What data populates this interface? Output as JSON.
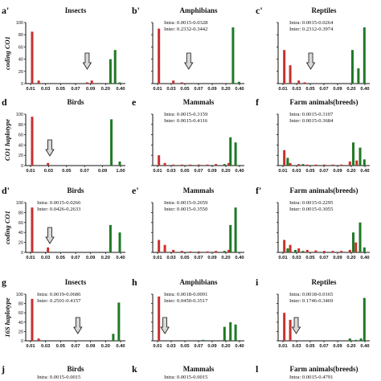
{
  "row_labels": [
    "coding CO1",
    "CO1 haplotype",
    "coding CO1",
    "16S haplotype"
  ],
  "colors": {
    "intra": "#c8302e",
    "inter": "#1e7a26",
    "arrow": "#d9d9d9",
    "axis": "#111111"
  },
  "chart_data": [
    {
      "type": "bar",
      "panel": "a'",
      "title": "Insects",
      "annotations": [],
      "categories": [
        "0.01",
        "0.03",
        "0.05",
        "0.07",
        "0.09",
        "0.20",
        "0.40"
      ],
      "ylim": [
        0,
        100
      ],
      "yticks": [
        0,
        20,
        40,
        60,
        80,
        100
      ],
      "arrow_at": 0.62,
      "series": [
        {
          "values": [
            [
              0.03,
              85
            ],
            [
              0.1,
              5
            ],
            [
              0.62,
              2
            ],
            [
              0.67,
              5
            ]
          ]
        },
        {
          "values": [
            [
              0.87,
              40
            ],
            [
              0.92,
              55
            ],
            [
              0.97,
              2
            ]
          ]
        }
      ]
    },
    {
      "type": "bar",
      "panel": "b'",
      "title": "Amphibians",
      "annotations": [
        "Intra: 0.0015-0.0328",
        "Inter: 0.2332-0.3442"
      ],
      "categories": [
        "0.01",
        "0.03",
        "0.05",
        "0.07",
        "0.09",
        "0.20",
        "0.40"
      ],
      "ylim": [
        0,
        100
      ],
      "yticks": [
        0,
        20,
        40,
        60,
        80,
        100
      ],
      "arrow_at": 0.38,
      "series": [
        {
          "values": [
            [
              0.03,
              90
            ],
            [
              0.2,
              5
            ],
            [
              0.3,
              2
            ]
          ]
        },
        {
          "values": [
            [
              0.9,
              92
            ],
            [
              0.97,
              3
            ]
          ]
        }
      ]
    },
    {
      "type": "bar",
      "panel": "c'",
      "title": "Reptiles",
      "annotations": [
        "Intra: 0.0015-0.0264",
        "Inter: 0.2312-0.3974"
      ],
      "categories": [
        "0.01",
        "0.03",
        "0.05",
        "0.07",
        "0.09",
        "0.20",
        "0.40"
      ],
      "ylim": [
        0,
        100
      ],
      "yticks": [
        0,
        20,
        40,
        60,
        80,
        100
      ],
      "arrow_at": 0.34,
      "series": [
        {
          "values": [
            [
              0.03,
              55
            ],
            [
              0.1,
              30
            ],
            [
              0.2,
              5
            ],
            [
              0.27,
              2
            ]
          ]
        },
        {
          "values": [
            [
              0.83,
              55
            ],
            [
              0.9,
              25
            ],
            [
              0.97,
              92
            ]
          ]
        }
      ]
    },
    {
      "type": "bar",
      "panel": "d",
      "title": "Birds",
      "annotations": [],
      "categories": [
        "0.01",
        "0.03",
        "0.05",
        "0.07",
        "0.09",
        "1.00"
      ],
      "ylim": [
        0,
        100
      ],
      "yticks": [
        0,
        20,
        40,
        60,
        80,
        100
      ],
      "arrow_at": 0.22,
      "series": [
        {
          "values": [
            [
              0.03,
              95
            ],
            [
              0.2,
              5
            ]
          ]
        },
        {
          "values": [
            [
              0.88,
              90
            ],
            [
              0.97,
              8
            ]
          ]
        }
      ]
    },
    {
      "type": "bar",
      "panel": "e",
      "title": "Mammals",
      "annotations": [
        "Intra: 0.0015-0.3159",
        "Inter: 0.0015-0.4116"
      ],
      "categories": [
        "0.01",
        "0.03",
        "0.05",
        "0.07",
        "0.09",
        "0.20",
        "0.40"
      ],
      "ylim": [
        0,
        100
      ],
      "yticks": [
        0,
        20,
        40,
        60,
        80,
        100
      ],
      "arrow_at": null,
      "series": [
        {
          "values": [
            [
              0.03,
              20
            ],
            [
              0.1,
              5
            ],
            [
              0.2,
              2
            ],
            [
              0.3,
              2
            ],
            [
              0.4,
              2
            ],
            [
              0.5,
              2
            ],
            [
              0.6,
              2
            ],
            [
              0.7,
              3
            ],
            [
              0.85,
              5
            ]
          ]
        },
        {
          "values": [
            [
              0.8,
              3
            ],
            [
              0.87,
              55
            ],
            [
              0.93,
              45
            ]
          ]
        }
      ]
    },
    {
      "type": "bar",
      "panel": "f",
      "title": "Farm animals(breeds)",
      "annotations": [
        "Intra: 0.0015-0.3107",
        "Inter: 0.0015-0.3684"
      ],
      "categories": [
        "0.01",
        "0.03",
        "0.05",
        "0.07",
        "0.09",
        "0.20",
        "0.40"
      ],
      "ylim": [
        0,
        100
      ],
      "yticks": [
        0,
        20,
        40,
        60,
        80,
        100
      ],
      "arrow_at": null,
      "series": [
        {
          "values": [
            [
              0.03,
              30
            ],
            [
              0.1,
              5
            ],
            [
              0.2,
              3
            ],
            [
              0.3,
              2
            ],
            [
              0.4,
              2
            ],
            [
              0.5,
              2
            ],
            [
              0.6,
              2
            ],
            [
              0.7,
              2
            ],
            [
              0.8,
              8
            ],
            [
              0.88,
              10
            ]
          ]
        },
        {
          "values": [
            [
              0.07,
              15
            ],
            [
              0.25,
              3
            ],
            [
              0.84,
              45
            ],
            [
              0.92,
              35
            ],
            [
              0.97,
              12
            ]
          ]
        }
      ]
    },
    {
      "type": "bar",
      "panel": "d'",
      "title": "Birds",
      "annotations": [
        "Intra: 0.0015-0.0266",
        "Inter: 0.0426-0.2633"
      ],
      "categories": [
        "0.01",
        "0.03",
        "0.05",
        "0.07",
        "0.09",
        "0.20",
        "0.40"
      ],
      "ylim": [
        0,
        100
      ],
      "yticks": [
        0,
        20,
        40,
        60,
        80,
        100
      ],
      "arrow_at": 0.22,
      "series": [
        {
          "values": [
            [
              0.03,
              90
            ],
            [
              0.2,
              10
            ]
          ]
        },
        {
          "values": [
            [
              0.87,
              55
            ],
            [
              0.97,
              40
            ]
          ]
        }
      ]
    },
    {
      "type": "bar",
      "panel": "e'",
      "title": "Mammals",
      "annotations": [
        "Intra: 0.0015-0.2659",
        "Inter: 0.0015-0.3550"
      ],
      "categories": [
        "0.01",
        "0.03",
        "0.05",
        "0.07",
        "0.09",
        "0.20",
        "0.40"
      ],
      "ylim": [
        0,
        100
      ],
      "yticks": [
        0,
        20,
        40,
        60,
        80,
        100
      ],
      "arrow_at": null,
      "series": [
        {
          "values": [
            [
              0.03,
              25
            ],
            [
              0.1,
              15
            ],
            [
              0.2,
              5
            ],
            [
              0.3,
              3
            ],
            [
              0.4,
              2
            ],
            [
              0.5,
              2
            ],
            [
              0.6,
              2
            ],
            [
              0.7,
              3
            ],
            [
              0.85,
              5
            ]
          ]
        },
        {
          "values": [
            [
              0.8,
              3
            ],
            [
              0.87,
              55
            ],
            [
              0.93,
              90
            ]
          ]
        }
      ]
    },
    {
      "type": "bar",
      "panel": "f'",
      "title": "Farm animals(breeds)",
      "annotations": [
        "Intra: 0.0015-0.2295",
        "Inter: 0.0015-0.3055"
      ],
      "categories": [
        "0.01",
        "0.03",
        "0.05",
        "0.07",
        "0.09",
        "0.20",
        "0.40"
      ],
      "ylim": [
        0,
        100
      ],
      "yticks": [
        0,
        20,
        40,
        60,
        80,
        100
      ],
      "arrow_at": null,
      "series": [
        {
          "values": [
            [
              0.03,
              25
            ],
            [
              0.1,
              15
            ],
            [
              0.2,
              8
            ],
            [
              0.3,
              5
            ],
            [
              0.4,
              4
            ],
            [
              0.5,
              3
            ],
            [
              0.6,
              3
            ],
            [
              0.7,
              3
            ],
            [
              0.8,
              5
            ],
            [
              0.87,
              20
            ]
          ]
        },
        {
          "values": [
            [
              0.07,
              8
            ],
            [
              0.16,
              5
            ],
            [
              0.25,
              3
            ],
            [
              0.84,
              40
            ],
            [
              0.92,
              60
            ],
            [
              0.97,
              10
            ]
          ]
        }
      ]
    },
    {
      "type": "bar",
      "panel": "g",
      "title": "Insects",
      "annotations": [
        "Intra: 0.0019-0.0686",
        "Inter: 0.2501-0.4157"
      ],
      "categories": [
        "0.01",
        "0.03",
        "0.05",
        "0.07",
        "0.09",
        "0.20",
        "0.40"
      ],
      "ylim": [
        0,
        100
      ],
      "yticks": [
        0,
        20,
        40,
        60,
        80,
        100
      ],
      "arrow_at": 0.52,
      "series": [
        {
          "values": [
            [
              0.03,
              90
            ],
            [
              0.1,
              5
            ]
          ]
        },
        {
          "values": [
            [
              0.9,
              15
            ],
            [
              0.96,
              82
            ]
          ]
        }
      ]
    },
    {
      "type": "bar",
      "panel": "h",
      "title": "Amphibians",
      "annotations": [
        "Intra: 0.0018-0.0091",
        "Inter: 0.0450-0.3517"
      ],
      "categories": [
        "0.01",
        "0.03",
        "0.05",
        "0.07",
        "0.09",
        "0.20",
        "0.40"
      ],
      "ylim": [
        0,
        100
      ],
      "yticks": [
        0,
        20,
        40,
        60,
        80,
        100
      ],
      "arrow_at": 0.1,
      "series": [
        {
          "values": [
            [
              0.03,
              95
            ]
          ]
        },
        {
          "values": [
            [
              0.55,
              2
            ],
            [
              0.8,
              30
            ],
            [
              0.87,
              40
            ],
            [
              0.93,
              35
            ]
          ]
        }
      ]
    },
    {
      "type": "bar",
      "panel": "i",
      "title": "Reptiles",
      "annotations": [
        "Intra: 0.0018-0.0165",
        "Inter: 0.1746-0.3469"
      ],
      "categories": [
        "0.01",
        "0.03",
        "0.05",
        "0.07",
        "0.09",
        "0.20",
        "0.40"
      ],
      "ylim": [
        0,
        100
      ],
      "yticks": [
        0,
        20,
        40,
        60,
        80,
        100
      ],
      "arrow_at": 0.17,
      "series": [
        {
          "values": [
            [
              0.03,
              60
            ],
            [
              0.1,
              45
            ]
          ]
        },
        {
          "values": [
            [
              0.8,
              5
            ],
            [
              0.87,
              2
            ],
            [
              0.93,
              5
            ],
            [
              0.97,
              92
            ]
          ]
        }
      ]
    },
    {
      "type": "bar",
      "panel": "j",
      "title": "Birds",
      "annotations": [
        "Intra: 0.0015-0.0015"
      ],
      "categories": [],
      "ylim": [
        0,
        100
      ],
      "yticks": [],
      "arrow_at": null,
      "series": []
    },
    {
      "type": "bar",
      "panel": "k",
      "title": "Mammals",
      "annotations": [
        "Intra: 0.0015-0.0015"
      ],
      "categories": [],
      "ylim": [
        0,
        100
      ],
      "yticks": [],
      "arrow_at": null,
      "series": []
    },
    {
      "type": "bar",
      "panel": "l",
      "title": "Farm animals(breeds)",
      "annotations": [
        "Intra: 0.0015-0.4791"
      ],
      "categories": [],
      "ylim": [
        0,
        100
      ],
      "yticks": [],
      "arrow_at": null,
      "series": []
    }
  ]
}
